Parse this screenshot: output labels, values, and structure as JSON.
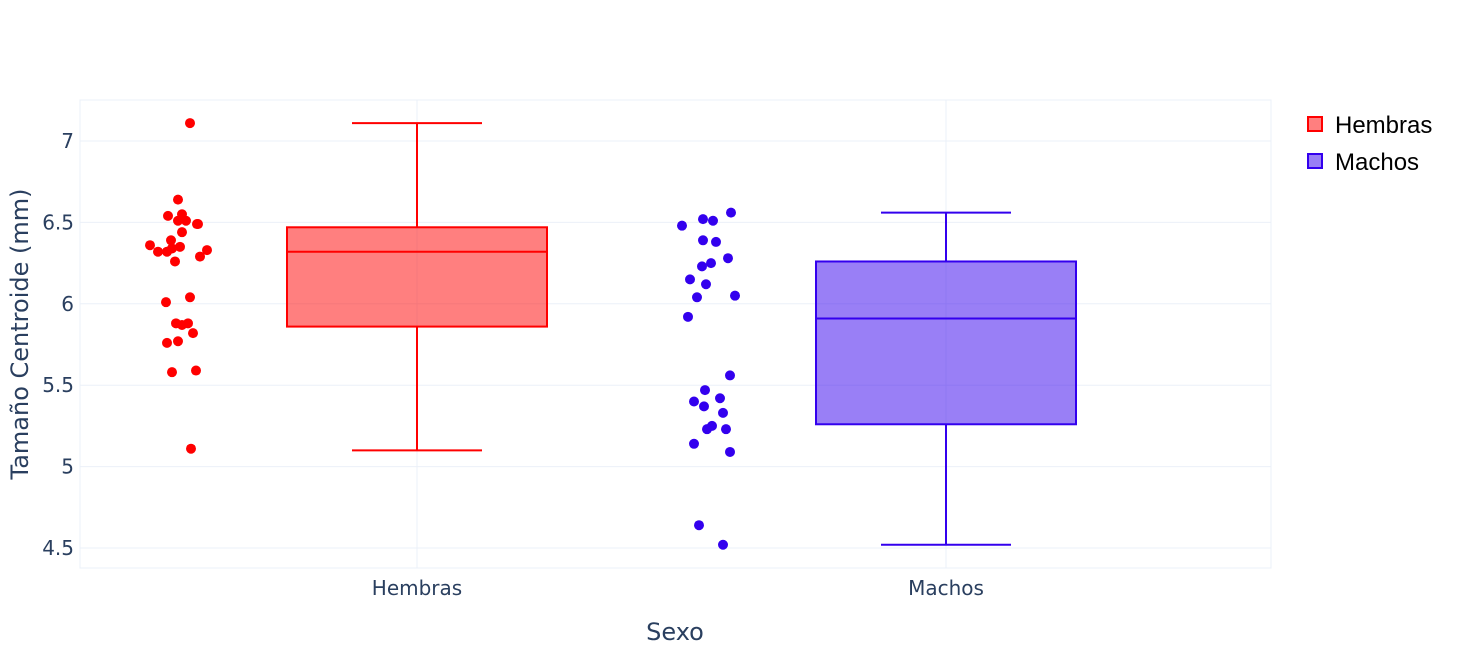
{
  "chart_data": {
    "type": "box",
    "title": "",
    "xlabel": "Sexo",
    "ylabel": "Tamaño Centroide (mm)",
    "ylim": [
      4.38,
      7.26
    ],
    "yticks": [
      4.5,
      5,
      5.5,
      6,
      6.5,
      7
    ],
    "ytick_labels": [
      "4.5",
      "5",
      "5.5",
      "6",
      "6.5",
      "7"
    ],
    "categories": [
      "Hembras",
      "Machos"
    ],
    "grid": true,
    "legend_position": "top-right",
    "show_points": "all (jittered, left of box)",
    "series": [
      {
        "name": "Hembras",
        "color": "#ff0000",
        "fill": "rgba(255,0,0,0.5)",
        "box": {
          "min": 5.1,
          "q1": 5.86,
          "median": 6.32,
          "q3": 6.47,
          "max": 7.11
        },
        "points": [
          7.11,
          6.64,
          6.54,
          6.55,
          6.51,
          6.51,
          6.49,
          6.49,
          6.39,
          6.36,
          6.35,
          6.32,
          6.32,
          6.34,
          6.44,
          6.33,
          6.26,
          6.29,
          6.04,
          6.01,
          5.88,
          5.88,
          5.87,
          5.82,
          5.77,
          5.76,
          5.58,
          5.59,
          5.11
        ]
      },
      {
        "name": "Machos",
        "color": "#3300ee",
        "fill": "rgba(51,0,238,0.5)",
        "box": {
          "min": 4.52,
          "q1": 5.26,
          "median": 5.91,
          "q3": 6.26,
          "max": 6.56
        },
        "points": [
          6.56,
          6.52,
          6.51,
          6.48,
          6.39,
          6.38,
          6.28,
          6.25,
          6.23,
          6.15,
          6.12,
          6.04,
          6.05,
          5.92,
          5.56,
          5.47,
          5.4,
          5.42,
          5.37,
          5.33,
          5.25,
          5.23,
          5.23,
          5.14,
          5.09,
          4.64,
          4.52
        ]
      }
    ]
  },
  "legend": {
    "items": [
      {
        "label": "Hembras",
        "color": "#ff0000"
      },
      {
        "label": "Machos",
        "color": "#3300ee"
      }
    ]
  }
}
